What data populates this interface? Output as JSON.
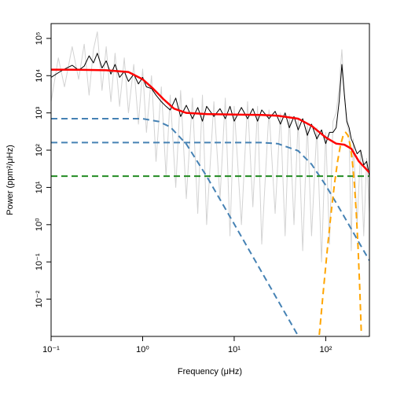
{
  "chart_data": {
    "type": "line",
    "xlabel": "Frequency (μHz)",
    "ylabel": "Power (ppm²/μHz)",
    "xscale": "log",
    "yscale": "log",
    "xlim": [
      0.1,
      300
    ],
    "ylim": [
      0.001,
      250000
    ],
    "xticks": [
      {
        "value": 0.1,
        "label": "10⁻¹"
      },
      {
        "value": 1,
        "label": "10⁰"
      },
      {
        "value": 10,
        "label": "10¹"
      },
      {
        "value": 100,
        "label": "10²"
      }
    ],
    "yticks": [
      {
        "value": 0.01,
        "label": "10⁻²"
      },
      {
        "value": 0.1,
        "label": "10⁻¹"
      },
      {
        "value": 1,
        "label": "10⁰"
      },
      {
        "value": 10,
        "label": "10¹"
      },
      {
        "value": 100,
        "label": "10²"
      },
      {
        "value": 1000,
        "label": "10³"
      },
      {
        "value": 10000,
        "label": "10⁴"
      },
      {
        "value": 100000,
        "label": "10⁵"
      }
    ],
    "series": [
      {
        "color": "#d3d3d3",
        "linestyle": "solid",
        "linewidth": 1,
        "x": [
          0.1,
          0.12,
          0.14,
          0.17,
          0.2,
          0.23,
          0.26,
          0.29,
          0.32,
          0.36,
          0.4,
          0.45,
          0.5,
          0.56,
          0.63,
          0.7,
          0.8,
          0.9,
          1.0,
          1.1,
          1.25,
          1.4,
          1.6,
          1.8,
          2.0,
          2.3,
          2.6,
          3,
          3.5,
          4,
          4.5,
          5,
          6,
          7,
          8,
          9,
          10,
          12,
          14,
          16,
          18,
          20,
          24,
          28,
          32,
          36,
          40,
          45,
          50,
          56,
          63,
          70,
          80,
          90,
          100,
          110,
          120,
          130,
          140,
          150,
          160,
          170,
          180,
          190,
          200,
          220,
          240,
          260,
          280,
          300
        ],
        "values": [
          2000,
          30000,
          5000,
          60000,
          8000,
          70000,
          3000,
          50000,
          150000,
          4000,
          60000,
          2000,
          40000,
          1500,
          30000,
          1000,
          20000,
          500,
          15000,
          300,
          10000,
          50,
          5000,
          20,
          3000,
          10,
          4000,
          5,
          2500,
          2,
          3000,
          1,
          2000,
          5,
          2500,
          0.5,
          1500,
          1,
          2000,
          3,
          1500,
          0.3,
          1200,
          2,
          1000,
          0.5,
          900,
          1,
          700,
          0.2,
          500,
          0.5,
          400,
          0.1,
          300,
          0.3,
          600,
          1000,
          5000,
          50000,
          3000,
          500,
          300,
          0.2,
          200,
          1,
          100,
          0.5,
          60,
          2
        ]
      },
      {
        "color": "#000000",
        "linestyle": "solid",
        "linewidth": 1,
        "x": [
          0.1,
          0.12,
          0.14,
          0.17,
          0.2,
          0.23,
          0.26,
          0.29,
          0.32,
          0.36,
          0.4,
          0.45,
          0.5,
          0.56,
          0.63,
          0.7,
          0.8,
          0.9,
          1.0,
          1.1,
          1.25,
          1.4,
          1.6,
          1.8,
          2.0,
          2.3,
          2.6,
          3,
          3.5,
          4,
          4.5,
          5,
          6,
          7,
          8,
          9,
          10,
          12,
          14,
          16,
          18,
          20,
          24,
          28,
          32,
          36,
          40,
          45,
          50,
          56,
          63,
          70,
          80,
          90,
          100,
          110,
          120,
          130,
          140,
          150,
          160,
          170,
          180,
          190,
          200,
          220,
          240,
          260,
          280,
          300
        ],
        "values": [
          9000,
          12000,
          15000,
          19000,
          14000,
          18000,
          34000,
          22000,
          40000,
          16000,
          25000,
          11000,
          20000,
          9000,
          13000,
          7000,
          11000,
          6000,
          9000,
          5000,
          4500,
          3000,
          2000,
          1500,
          1200,
          2500,
          800,
          1600,
          700,
          1400,
          600,
          1500,
          800,
          1300,
          700,
          1500,
          600,
          1400,
          700,
          1300,
          600,
          1200,
          700,
          1100,
          500,
          1000,
          400,
          800,
          350,
          700,
          250,
          500,
          200,
          350,
          150,
          300,
          300,
          400,
          2000,
          20000,
          3000,
          600,
          400,
          200,
          150,
          80,
          100,
          40,
          50,
          20
        ]
      },
      {
        "color": "#4682b4",
        "linestyle": "dashed",
        "linewidth": 2,
        "x": [
          0.1,
          0.5,
          1,
          1.5,
          2,
          3,
          5,
          10,
          20,
          50,
          100
        ],
        "values": [
          700,
          700,
          699,
          587,
          421,
          146,
          19.9,
          1.04,
          0.053,
          0.00103,
          5.2e-05
        ]
      },
      {
        "color": "#4682b4",
        "linestyle": "dashed",
        "linewidth": 2,
        "x": [
          0.1,
          1,
          10,
          20,
          30,
          50,
          70,
          100,
          140,
          180,
          240,
          300
        ],
        "values": [
          160,
          160,
          160,
          160,
          149,
          96,
          41.9,
          11.4,
          2.82,
          0.97,
          0.28,
          0.109
        ]
      },
      {
        "color": "#228b22",
        "linestyle": "dashed",
        "linewidth": 2,
        "x": [
          0.1,
          300
        ],
        "values": [
          20,
          20
        ]
      },
      {
        "color": "#ff0000",
        "linestyle": "solid",
        "linewidth": 2.5,
        "x": [
          0.1,
          0.2,
          0.4,
          0.7,
          1,
          1.3,
          1.7,
          2.2,
          3,
          5,
          10,
          20,
          30,
          50,
          70,
          100,
          130,
          160,
          190,
          230,
          300
        ],
        "values": [
          14500,
          14400,
          14000,
          12500,
          8000,
          4500,
          2300,
          1300,
          1000,
          930,
          900,
          880,
          840,
          700,
          450,
          220,
          150,
          140,
          110,
          50,
          25
        ]
      },
      {
        "color": "#ffa500",
        "linestyle": "dashed",
        "linewidth": 2,
        "x": [
          85,
          95,
          105,
          115,
          125,
          135,
          145,
          155,
          165,
          175,
          185,
          195,
          205,
          215,
          225,
          235,
          245
        ],
        "values": [
          0.0011,
          0.021,
          0.27,
          2.3,
          13.2,
          51.7,
          137,
          247,
          300,
          247,
          137,
          51.7,
          13.2,
          2.3,
          0.27,
          0.021,
          0.0011
        ]
      }
    ]
  }
}
